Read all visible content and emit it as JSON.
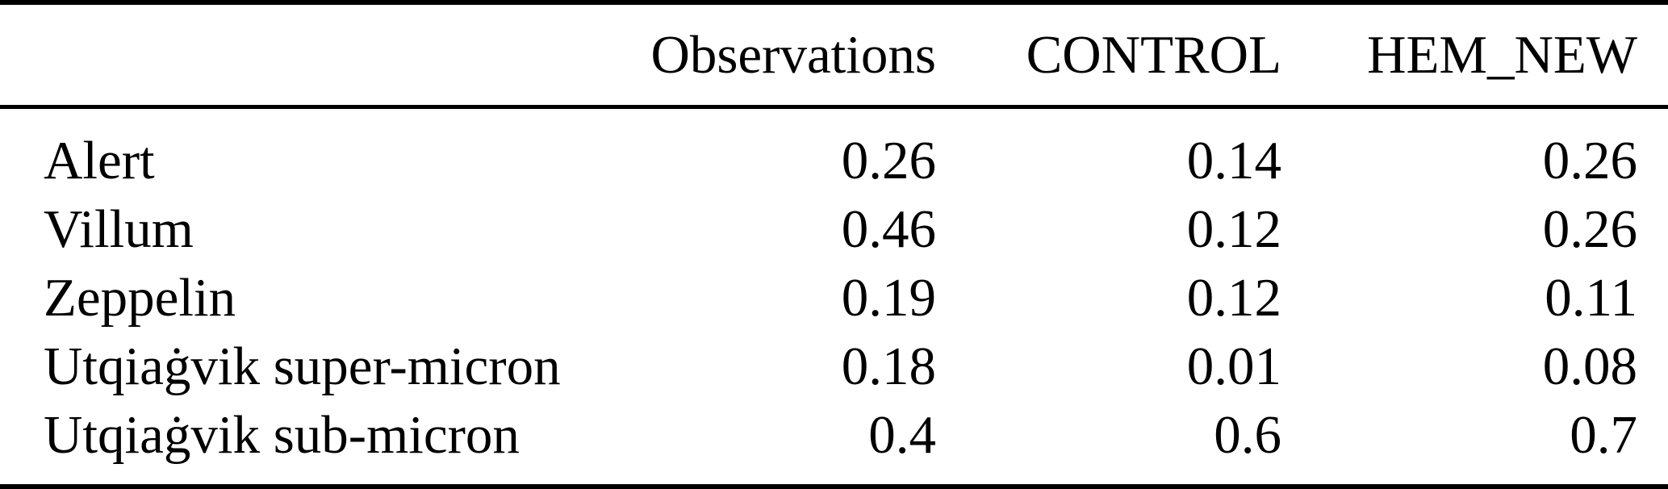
{
  "table": {
    "columns": [
      "",
      "Observations",
      "CONTROL",
      "HEM_NEW"
    ],
    "rows": [
      {
        "label": "Alert",
        "values": [
          "0.26",
          "0.14",
          "0.26"
        ]
      },
      {
        "label": "Villum",
        "values": [
          "0.46",
          "0.12",
          "0.26"
        ]
      },
      {
        "label": "Zeppelin",
        "values": [
          "0.19",
          "0.12",
          "0.11"
        ]
      },
      {
        "label": "Utqiaġvik super-micron",
        "values": [
          "0.18",
          "0.01",
          "0.08"
        ]
      },
      {
        "label": "Utqiaġvik sub-micron",
        "values": [
          "0.4",
          "0.6",
          "0.7"
        ]
      }
    ]
  },
  "chart_data": {
    "type": "table",
    "title": "",
    "categories": [
      "Alert",
      "Villum",
      "Zeppelin",
      "Utqiaġvik super-micron",
      "Utqiaġvik sub-micron"
    ],
    "series": [
      {
        "name": "Observations",
        "values": [
          0.26,
          0.46,
          0.19,
          0.18,
          0.4
        ]
      },
      {
        "name": "CONTROL",
        "values": [
          0.14,
          0.12,
          0.12,
          0.01,
          0.6
        ]
      },
      {
        "name": "HEM_NEW",
        "values": [
          0.26,
          0.26,
          0.11,
          0.08,
          0.7
        ]
      }
    ]
  },
  "colors": {
    "text": "#000000",
    "background": "#ffffff",
    "rule": "#000000"
  }
}
